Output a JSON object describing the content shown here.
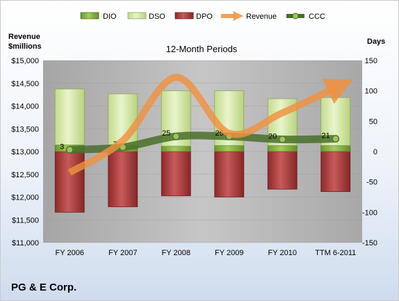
{
  "chart_data": {
    "type": "bar",
    "title": "12-Month Periods",
    "company": "PG & E Corp.",
    "y_left_label": [
      "Revenue",
      "$millions"
    ],
    "y_right_label": "Days",
    "categories": [
      "FY 2006",
      "FY 2007",
      "FY 2008",
      "FY 2009",
      "FY 2010",
      "TTM 6-2011"
    ],
    "y_left_ticks": [
      "$11,000",
      "$11,500",
      "$12,000",
      "$12,500",
      "$13,000",
      "$13,500",
      "$14,000",
      "$14,500",
      "$15,000"
    ],
    "y_right_ticks": [
      "-150",
      "-100",
      "-50",
      "0",
      "50",
      "100",
      "150"
    ],
    "y_left_range": [
      11000,
      15000
    ],
    "y_right_range": [
      -150,
      150
    ],
    "legend": [
      "DIO",
      "DSO",
      "DPO",
      "Revenue",
      "CCC"
    ],
    "legend_position": "top",
    "series": [
      {
        "name": "DIO",
        "axis": "right",
        "values": [
          11,
          10,
          9,
          10,
          10,
          10
        ]
      },
      {
        "name": "DSO",
        "axis": "right",
        "values": [
          92,
          85,
          91,
          90,
          77,
          79
        ]
      },
      {
        "name": "DPO",
        "axis": "right",
        "values": [
          -100,
          -91,
          -73,
          -75,
          -62,
          -66
        ]
      },
      {
        "name": "Revenue",
        "axis": "left",
        "values": [
          12540,
          13240,
          14630,
          13400,
          13850,
          14400
        ]
      },
      {
        "name": "CCC",
        "axis": "right",
        "values": [
          3,
          7,
          25,
          25,
          20,
          21
        ]
      }
    ],
    "data_labels": [
      "3",
      "7",
      "25",
      "25",
      "20",
      "21"
    ],
    "colors": {
      "DIO": "#7fae3c",
      "DSO": "#d8e9b2",
      "DPO": "#a83a3a",
      "Revenue": "#f0913f",
      "CCC": "#4a6e2a",
      "plot_bg": "#b4b4b4"
    }
  }
}
